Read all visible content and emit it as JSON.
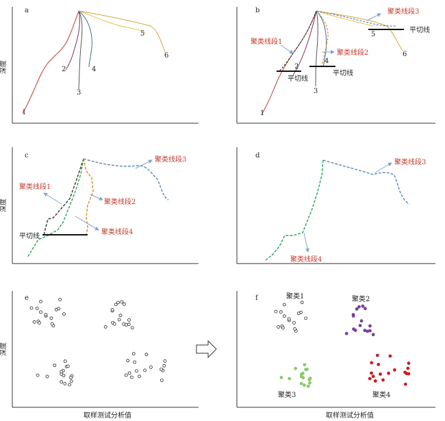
{
  "panels": {
    "a": {
      "letter": "a",
      "ylabel": "深度",
      "curves": [
        "1",
        "2",
        "3",
        "4",
        "5",
        "6"
      ]
    },
    "b": {
      "letter": "b",
      "segments": [
        "聚类线段1",
        "聚类线段2",
        "聚类线段3"
      ],
      "tangents": [
        "平切线",
        "平切线",
        "平切线"
      ],
      "curves": [
        "1",
        "2",
        "3",
        "4",
        "5",
        "6"
      ]
    },
    "c": {
      "letter": "c",
      "ylabel": "深度",
      "segments": [
        "聚类线段1",
        "聚类线段2",
        "聚类线段3",
        "聚类线段4"
      ],
      "tangent": "平切线"
    },
    "d": {
      "letter": "d",
      "segments": [
        "聚类线段3",
        "聚类线段4"
      ]
    },
    "e": {
      "letter": "e",
      "ylabel": "深度",
      "xlabel": "取样测试分析值"
    },
    "f": {
      "letter": "f",
      "clusters": [
        "聚类1",
        "聚类2",
        "聚类3",
        "聚类4"
      ],
      "xlabel": "取样测试分析值"
    }
  },
  "colors": {
    "curve1": "#c0392b",
    "curve2": "#7b2d5a",
    "curve3": "#555555",
    "curve4": "#3f6e8f",
    "curve5": "#e8c14a",
    "curve6": "#d4a23a",
    "seg_blue": "#5a86b8",
    "seg_orange": "#e08a1e",
    "seg_green": "#2aa05a",
    "seg_black": "#333333",
    "arrow": "#7fa6cf",
    "cluster2": "#7a3fa0",
    "cluster3": "#8cc86a",
    "cluster4": "#c81e1e"
  },
  "arrow_icon": "right-arrow-icon"
}
